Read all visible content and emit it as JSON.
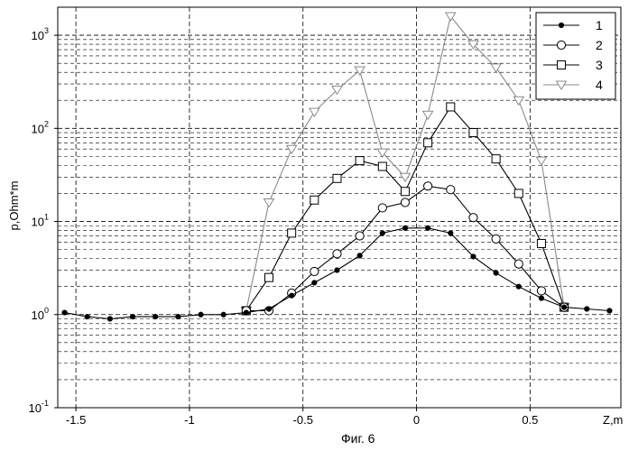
{
  "caption": "Фиг. 6",
  "chart_data": {
    "type": "line",
    "xlabel": "Z,m",
    "ylabel": "p,Ohm*m",
    "xlim": [
      -1.58,
      0.9
    ],
    "ylim": [
      0.1,
      2000
    ],
    "yscale": "log",
    "grid": true,
    "legend_position": "top-right",
    "x_ticks": [
      "-1.5",
      "-1",
      "-0.5",
      "0",
      "0.5"
    ],
    "x_tick_values": [
      -1.5,
      -1.0,
      -0.5,
      0.0,
      0.5
    ],
    "y_ticks": [
      {
        "base": "10",
        "exp": "-1",
        "value": 0.1
      },
      {
        "base": "10",
        "exp": "0",
        "value": 1
      },
      {
        "base": "10",
        "exp": "1",
        "value": 10
      },
      {
        "base": "10",
        "exp": "2",
        "value": 100
      },
      {
        "base": "10",
        "exp": "3",
        "value": 1000
      }
    ],
    "series": [
      {
        "name": "1",
        "marker": "dot",
        "color": "#000000",
        "x": [
          -1.55,
          -1.45,
          -1.35,
          -1.25,
          -1.15,
          -1.05,
          -0.95,
          -0.85,
          -0.75,
          -0.65,
          -0.55,
          -0.45,
          -0.35,
          -0.25,
          -0.15,
          -0.05,
          0.05,
          0.15,
          0.25,
          0.35,
          0.45,
          0.55,
          0.65,
          0.75,
          0.85
        ],
        "y": [
          1.05,
          0.95,
          0.9,
          0.95,
          0.95,
          0.95,
          1.0,
          1.0,
          1.05,
          1.15,
          1.6,
          2.2,
          3.0,
          4.3,
          7.5,
          8.5,
          8.5,
          7.5,
          4.2,
          2.8,
          2.0,
          1.5,
          1.2,
          1.15,
          1.1
        ]
      },
      {
        "name": "2",
        "marker": "circle",
        "color": "#000000",
        "x": [
          -0.75,
          -0.65,
          -0.55,
          -0.45,
          -0.35,
          -0.25,
          -0.15,
          -0.05,
          0.05,
          0.15,
          0.25,
          0.35,
          0.45,
          0.55,
          0.65
        ],
        "y": [
          1.1,
          1.1,
          1.7,
          2.9,
          4.5,
          7.0,
          14,
          16,
          24,
          22,
          11,
          6.5,
          3.5,
          1.8,
          1.2
        ]
      },
      {
        "name": "3",
        "marker": "square",
        "color": "#000000",
        "x": [
          -0.75,
          -0.65,
          -0.55,
          -0.45,
          -0.35,
          -0.25,
          -0.15,
          -0.05,
          0.05,
          0.15,
          0.25,
          0.35,
          0.45,
          0.55,
          0.65
        ],
        "y": [
          1.1,
          2.5,
          7.5,
          17,
          29,
          45,
          39,
          21,
          70,
          170,
          90,
          47,
          20,
          5.8,
          1.2
        ]
      },
      {
        "name": "4",
        "marker": "triangle-down",
        "color": "#8a8a8a",
        "x": [
          -0.75,
          -0.65,
          -0.55,
          -0.45,
          -0.35,
          -0.25,
          -0.15,
          -0.05,
          0.05,
          0.15,
          0.25,
          0.35,
          0.45,
          0.55,
          0.65
        ],
        "y": [
          1.1,
          16,
          60,
          150,
          260,
          420,
          55,
          30,
          140,
          1600,
          800,
          450,
          200,
          45,
          1.2
        ]
      }
    ]
  }
}
